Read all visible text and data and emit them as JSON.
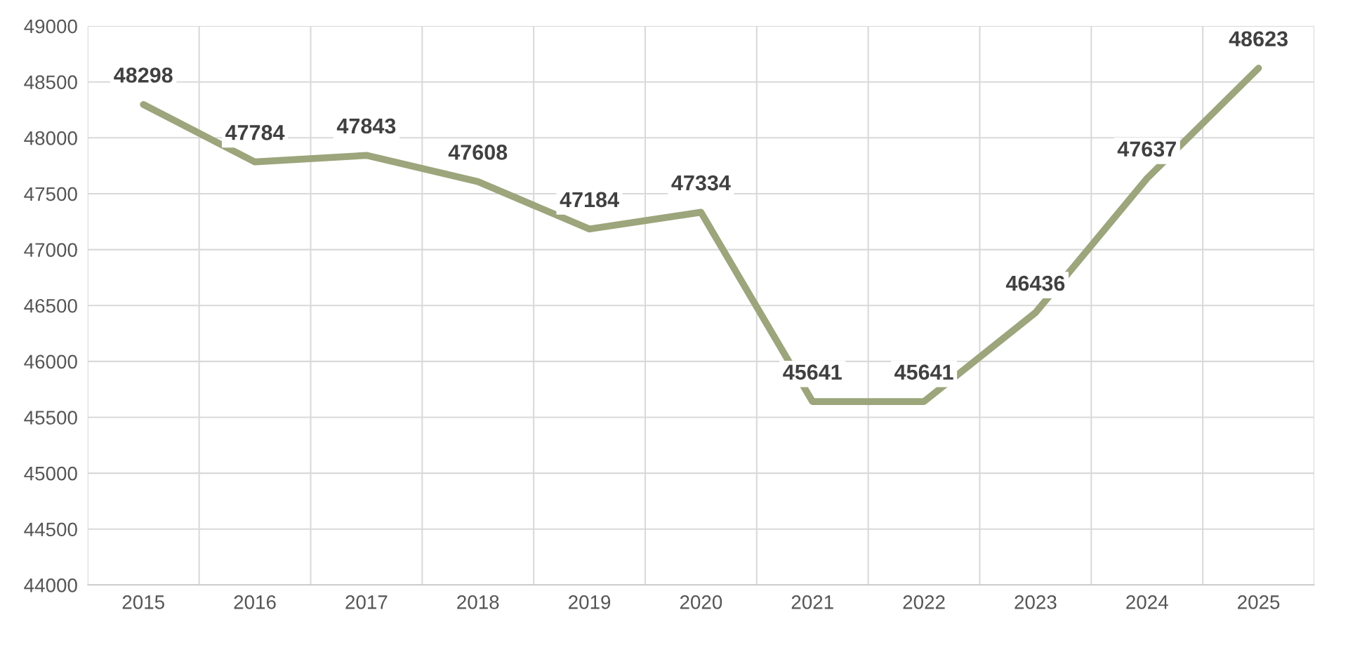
{
  "chart_data": {
    "type": "line",
    "categories": [
      "2015",
      "2016",
      "2017",
      "2018",
      "2019",
      "2020",
      "2021",
      "2022",
      "2023",
      "2024",
      "2025"
    ],
    "series": [
      {
        "color": "#9ca57b",
        "values": [
          48298,
          47784,
          47843,
          47608,
          47184,
          47334,
          45641,
          45641,
          46436,
          47637,
          48623
        ]
      }
    ],
    "ylim": [
      44000,
      49000
    ],
    "yticks": [
      44000,
      44500,
      45000,
      45500,
      46000,
      46500,
      47000,
      47500,
      48000,
      48500,
      49000
    ],
    "grid": true,
    "data_labels": true,
    "marker": "none",
    "line_style": "solid"
  }
}
